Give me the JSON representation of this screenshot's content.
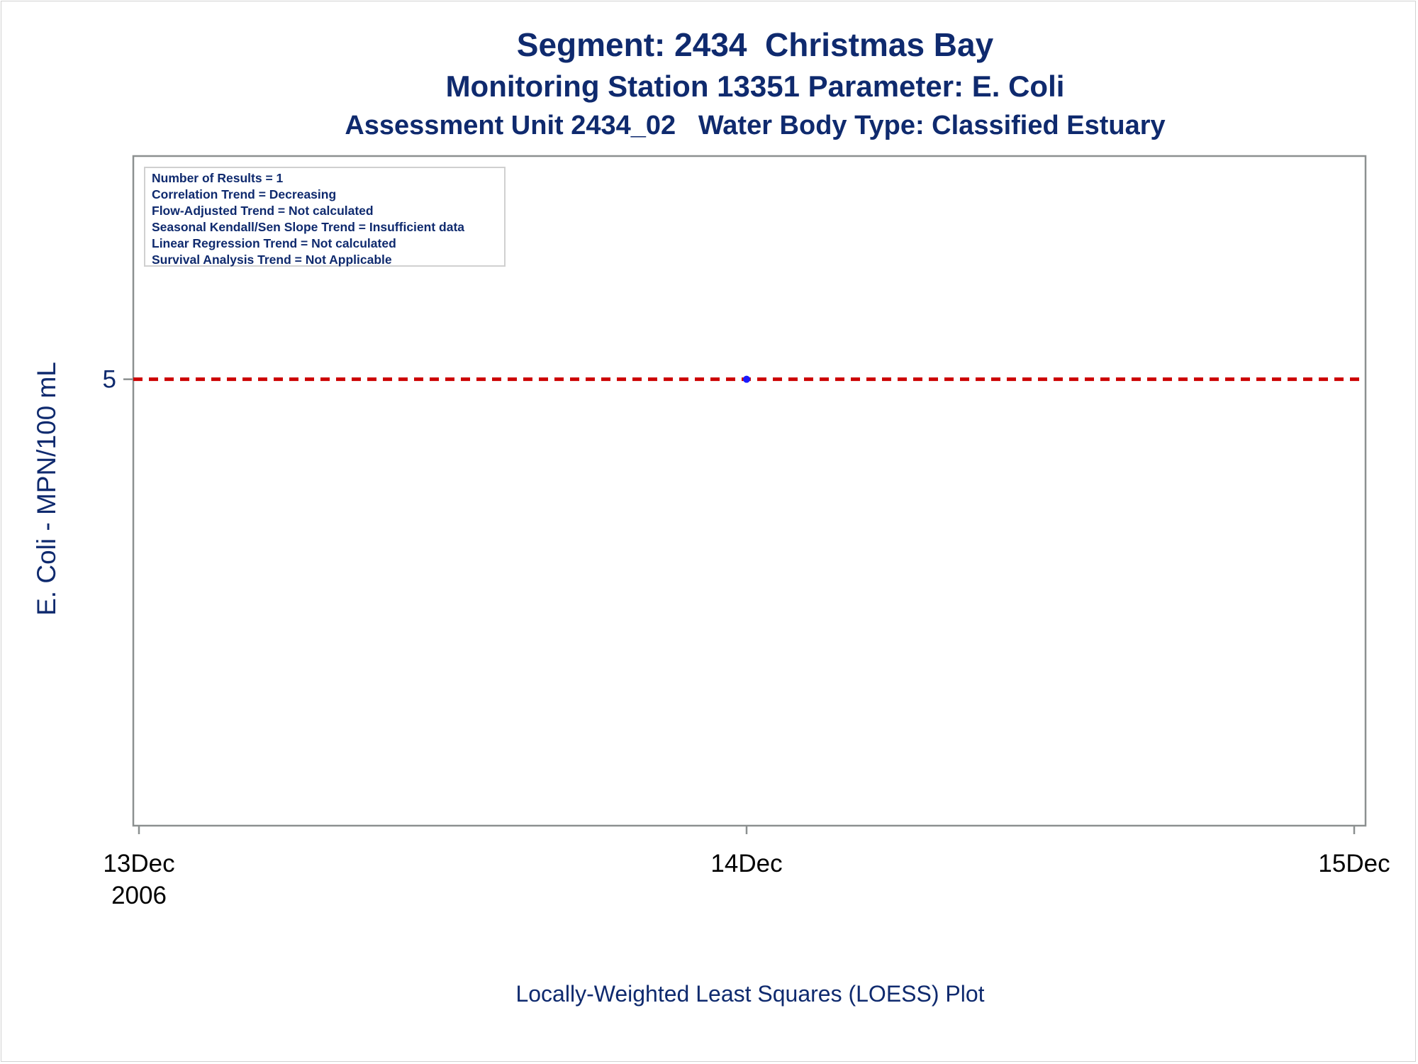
{
  "titles": {
    "line1": "Segment: 2434  Christmas Bay",
    "line2": "Monitoring Station 13351 Parameter: E. Coli",
    "line3": "Assessment Unit 2434_02   Water Body Type: Classified Estuary"
  },
  "stats": [
    "Number of Results = 1",
    "Correlation Trend = Decreasing",
    "Flow-Adjusted Trend = Not calculated",
    "Seasonal Kendall/Sen Slope Trend = Insufficient data",
    "Linear Regression Trend = Not calculated",
    "Survival Analysis Trend = Not Applicable"
  ],
  "chart_data": {
    "type": "scatter",
    "xlabel": "Locally-Weighted Least Squares (LOESS) Plot",
    "ylabel": "E. Coli - MPN/100 mL",
    "x_ticks": [
      {
        "value": "2006-12-13",
        "label": "13Dec",
        "sublabel": "2006"
      },
      {
        "value": "2006-12-14",
        "label": "14Dec",
        "sublabel": ""
      },
      {
        "value": "2006-12-15",
        "label": "15Dec",
        "sublabel": ""
      }
    ],
    "y_ticks": [
      5
    ],
    "xlim": [
      "2006-12-13",
      "2006-12-15"
    ],
    "ylim": [
      4,
      5.5
    ],
    "points": [
      {
        "x": "2006-12-14",
        "y": 5
      }
    ],
    "reference_line": {
      "y": 5,
      "style": "dashed",
      "color": "#cc0000"
    },
    "point_color": "#1a1aff",
    "grid": false
  },
  "colors": {
    "text": "#0f2a6e",
    "axis": "#8c9090",
    "tick_text": "#000000"
  }
}
